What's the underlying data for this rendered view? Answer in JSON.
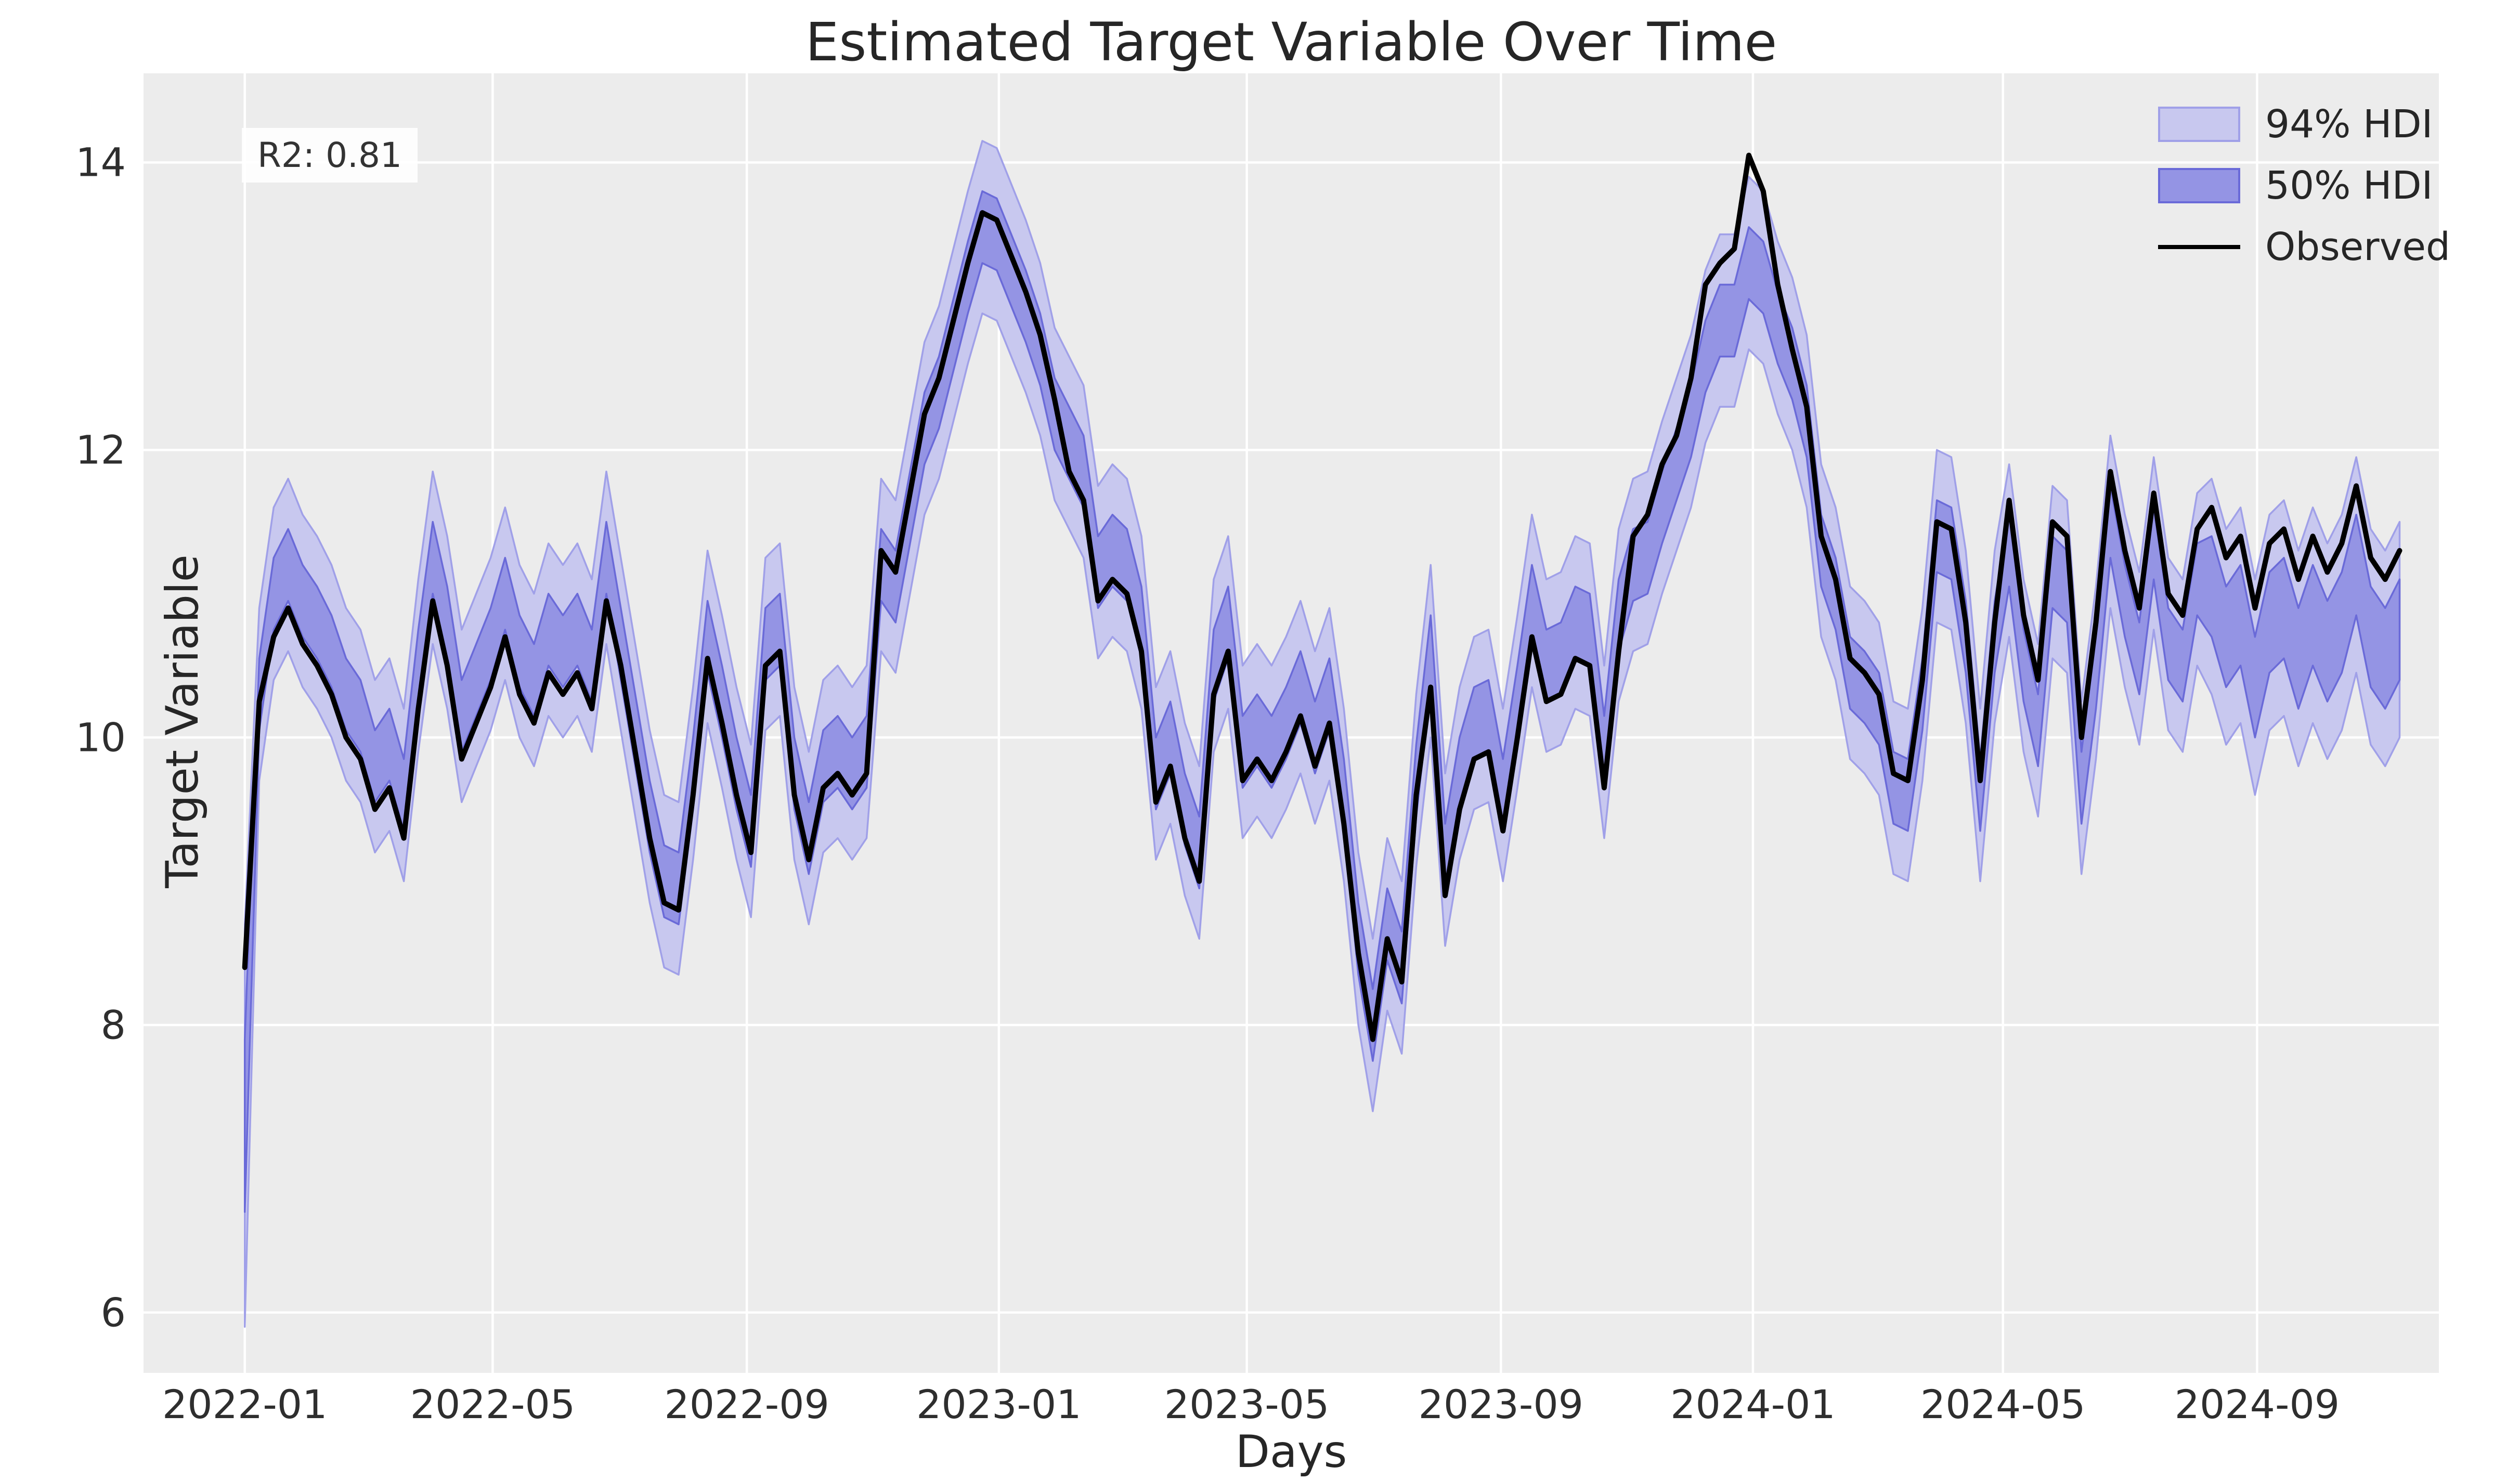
{
  "chart_data": {
    "type": "line",
    "title": "Estimated Target Variable Over Time",
    "xlabel": "Days",
    "ylabel": "Target Variable",
    "annotation": "R2: 0.81",
    "background_color": "#ececec",
    "grid_color": "#ffffff",
    "grid": true,
    "legend_position": "upper right",
    "legend": [
      {
        "label": "94% HDI",
        "fill": "#c8c8ef",
        "edge": "#a0a0e8"
      },
      {
        "label": "50% HDI",
        "fill": "#9494e4",
        "edge": "#6a6ad8"
      },
      {
        "label": "Observed",
        "fill": "#000000",
        "edge": "#000000"
      }
    ],
    "observed_color": "#000000",
    "xlim_days": [
      -49,
      1062
    ],
    "ylim": [
      5.58,
      14.62
    ],
    "y_ticks": [
      6,
      8,
      10,
      12,
      14
    ],
    "x_ticks": [
      {
        "day": 0,
        "label": "2022-01"
      },
      {
        "day": 120,
        "label": "2022-05"
      },
      {
        "day": 243,
        "label": "2022-09"
      },
      {
        "day": 365,
        "label": "2023-01"
      },
      {
        "day": 485,
        "label": "2023-05"
      },
      {
        "day": 608,
        "label": "2023-09"
      },
      {
        "day": 730,
        "label": "2024-01"
      },
      {
        "day": 851,
        "label": "2024-05"
      },
      {
        "day": 974,
        "label": "2024-09"
      }
    ],
    "series_start_day": 0,
    "series_step_days": 7,
    "observed": [
      8.4,
      10.25,
      10.7,
      10.9,
      10.65,
      10.5,
      10.3,
      10.0,
      9.85,
      9.5,
      9.65,
      9.3,
      10.2,
      10.95,
      10.5,
      9.85,
      10.1,
      10.35,
      10.7,
      10.3,
      10.1,
      10.45,
      10.3,
      10.45,
      10.2,
      10.95,
      10.5,
      9.9,
      9.3,
      8.85,
      8.8,
      9.6,
      10.55,
      10.1,
      9.6,
      9.2,
      10.5,
      10.6,
      9.6,
      9.15,
      9.65,
      9.75,
      9.6,
      9.75,
      11.3,
      11.15,
      11.7,
      12.25,
      12.5,
      12.9,
      13.3,
      13.65,
      13.6,
      13.35,
      13.1,
      12.8,
      12.35,
      11.85,
      11.65,
      10.95,
      11.1,
      11.0,
      10.6,
      9.55,
      9.8,
      9.3,
      9.0,
      10.3,
      10.6,
      9.7,
      9.85,
      9.7,
      9.9,
      10.15,
      9.8,
      10.1,
      9.4,
      8.5,
      7.9,
      8.6,
      8.3,
      9.6,
      10.35,
      8.9,
      9.5,
      9.85,
      9.9,
      9.35,
      10.0,
      10.7,
      10.25,
      10.3,
      10.55,
      10.5,
      9.65,
      10.6,
      11.4,
      11.55,
      11.9,
      12.1,
      12.5,
      13.15,
      13.3,
      13.4,
      14.05,
      13.8,
      13.15,
      12.7,
      12.3,
      11.4,
      11.1,
      10.55,
      10.45,
      10.3,
      9.75,
      9.7,
      10.4,
      11.5,
      11.45,
      10.8,
      9.7,
      10.8,
      11.65,
      10.85,
      10.4,
      11.5,
      11.4,
      10.0,
      10.8,
      11.85,
      11.3,
      10.9,
      11.7,
      11.0,
      10.85,
      11.45,
      11.6,
      11.25,
      11.4,
      10.9,
      11.35,
      11.45,
      11.1,
      11.4,
      11.15,
      11.35,
      11.75,
      11.25,
      11.1,
      11.3
    ],
    "mean": [
      7.3,
      10.3,
      11.0,
      11.2,
      10.95,
      10.8,
      10.6,
      10.3,
      10.15,
      9.8,
      9.95,
      9.6,
      10.5,
      11.25,
      10.8,
      10.15,
      10.4,
      10.65,
      11.0,
      10.6,
      10.4,
      10.75,
      10.6,
      10.75,
      10.5,
      11.25,
      10.65,
      10.05,
      9.45,
      9.0,
      8.95,
      9.75,
      10.7,
      10.25,
      9.75,
      9.35,
      10.65,
      10.75,
      9.75,
      9.3,
      9.8,
      9.9,
      9.75,
      9.9,
      11.2,
      11.05,
      11.6,
      12.15,
      12.4,
      12.8,
      13.2,
      13.55,
      13.5,
      13.25,
      13.0,
      12.7,
      12.25,
      12.05,
      11.85,
      11.15,
      11.3,
      11.2,
      10.8,
      9.75,
      10.0,
      9.5,
      9.2,
      10.5,
      10.8,
      9.9,
      10.05,
      9.9,
      10.1,
      10.35,
      10.0,
      10.3,
      9.6,
      8.6,
      8.0,
      8.7,
      8.4,
      9.7,
      10.6,
      9.15,
      9.75,
      10.1,
      10.15,
      9.6,
      10.25,
      10.95,
      10.5,
      10.55,
      10.8,
      10.75,
      9.9,
      10.85,
      11.2,
      11.25,
      11.6,
      11.9,
      12.2,
      12.65,
      12.9,
      12.9,
      13.3,
      13.2,
      12.85,
      12.6,
      12.2,
      11.3,
      11.0,
      10.45,
      10.35,
      10.2,
      9.65,
      9.6,
      10.3,
      11.4,
      11.35,
      10.7,
      9.6,
      10.7,
      11.3,
      10.5,
      10.05,
      11.15,
      11.05,
      9.65,
      10.45,
      11.5,
      10.95,
      10.55,
      11.35,
      10.65,
      10.5,
      11.1,
      11.05,
      10.7,
      10.85,
      10.35,
      10.8,
      10.9,
      10.55,
      10.85,
      10.6,
      10.8,
      11.2,
      10.7,
      10.55,
      10.75
    ],
    "hdi50_half": [
      0.6,
      0.25,
      0.25,
      0.25,
      0.25,
      0.25,
      0.25,
      0.25,
      0.25,
      0.25,
      0.25,
      0.25,
      0.25,
      0.25,
      0.25,
      0.25,
      0.25,
      0.25,
      0.25,
      0.25,
      0.25,
      0.25,
      0.25,
      0.25,
      0.25,
      0.25,
      0.25,
      0.25,
      0.25,
      0.25,
      0.25,
      0.25,
      0.25,
      0.25,
      0.25,
      0.25,
      0.25,
      0.25,
      0.25,
      0.25,
      0.25,
      0.25,
      0.25,
      0.25,
      0.25,
      0.25,
      0.25,
      0.25,
      0.25,
      0.25,
      0.25,
      0.25,
      0.25,
      0.25,
      0.25,
      0.25,
      0.25,
      0.25,
      0.25,
      0.25,
      0.25,
      0.25,
      0.25,
      0.25,
      0.25,
      0.25,
      0.25,
      0.25,
      0.25,
      0.25,
      0.25,
      0.25,
      0.25,
      0.25,
      0.25,
      0.25,
      0.25,
      0.25,
      0.25,
      0.25,
      0.25,
      0.25,
      0.25,
      0.25,
      0.25,
      0.25,
      0.25,
      0.25,
      0.25,
      0.25,
      0.25,
      0.25,
      0.25,
      0.25,
      0.25,
      0.25,
      0.25,
      0.25,
      0.25,
      0.25,
      0.25,
      0.25,
      0.25,
      0.25,
      0.25,
      0.25,
      0.25,
      0.25,
      0.25,
      0.25,
      0.25,
      0.25,
      0.25,
      0.25,
      0.25,
      0.25,
      0.25,
      0.25,
      0.25,
      0.25,
      0.25,
      0.25,
      0.25,
      0.25,
      0.25,
      0.25,
      0.25,
      0.25,
      0.25,
      0.25,
      0.25,
      0.25,
      0.25,
      0.25,
      0.25,
      0.25,
      0.35,
      0.35,
      0.35,
      0.35,
      0.35,
      0.35,
      0.35,
      0.35,
      0.35,
      0.35,
      0.35,
      0.35,
      0.35,
      0.35
    ],
    "hdi94_half": [
      1.4,
      0.6,
      0.6,
      0.6,
      0.6,
      0.6,
      0.6,
      0.6,
      0.6,
      0.6,
      0.6,
      0.6,
      0.6,
      0.6,
      0.6,
      0.6,
      0.6,
      0.6,
      0.6,
      0.6,
      0.6,
      0.6,
      0.6,
      0.6,
      0.6,
      0.6,
      0.6,
      0.6,
      0.6,
      0.6,
      0.6,
      0.6,
      0.6,
      0.6,
      0.6,
      0.6,
      0.6,
      0.6,
      0.6,
      0.6,
      0.6,
      0.6,
      0.6,
      0.6,
      0.6,
      0.6,
      0.6,
      0.6,
      0.6,
      0.6,
      0.6,
      0.6,
      0.6,
      0.6,
      0.6,
      0.6,
      0.6,
      0.6,
      0.6,
      0.6,
      0.6,
      0.6,
      0.6,
      0.6,
      0.6,
      0.6,
      0.6,
      0.6,
      0.6,
      0.6,
      0.6,
      0.6,
      0.6,
      0.6,
      0.6,
      0.6,
      0.6,
      0.6,
      0.6,
      0.6,
      0.6,
      0.6,
      0.6,
      0.6,
      0.6,
      0.6,
      0.6,
      0.6,
      0.6,
      0.6,
      0.6,
      0.6,
      0.6,
      0.6,
      0.6,
      0.6,
      0.6,
      0.6,
      0.6,
      0.6,
      0.6,
      0.6,
      0.6,
      0.6,
      0.6,
      0.6,
      0.6,
      0.6,
      0.6,
      0.6,
      0.6,
      0.6,
      0.6,
      0.6,
      0.6,
      0.6,
      0.6,
      0.6,
      0.6,
      0.6,
      0.6,
      0.6,
      0.6,
      0.6,
      0.6,
      0.6,
      0.6,
      0.6,
      0.6,
      0.6,
      0.6,
      0.6,
      0.6,
      0.6,
      0.6,
      0.6,
      0.75,
      0.75,
      0.75,
      0.75,
      0.75,
      0.75,
      0.75,
      0.75,
      0.75,
      0.75,
      0.75,
      0.75,
      0.75,
      0.75
    ]
  }
}
